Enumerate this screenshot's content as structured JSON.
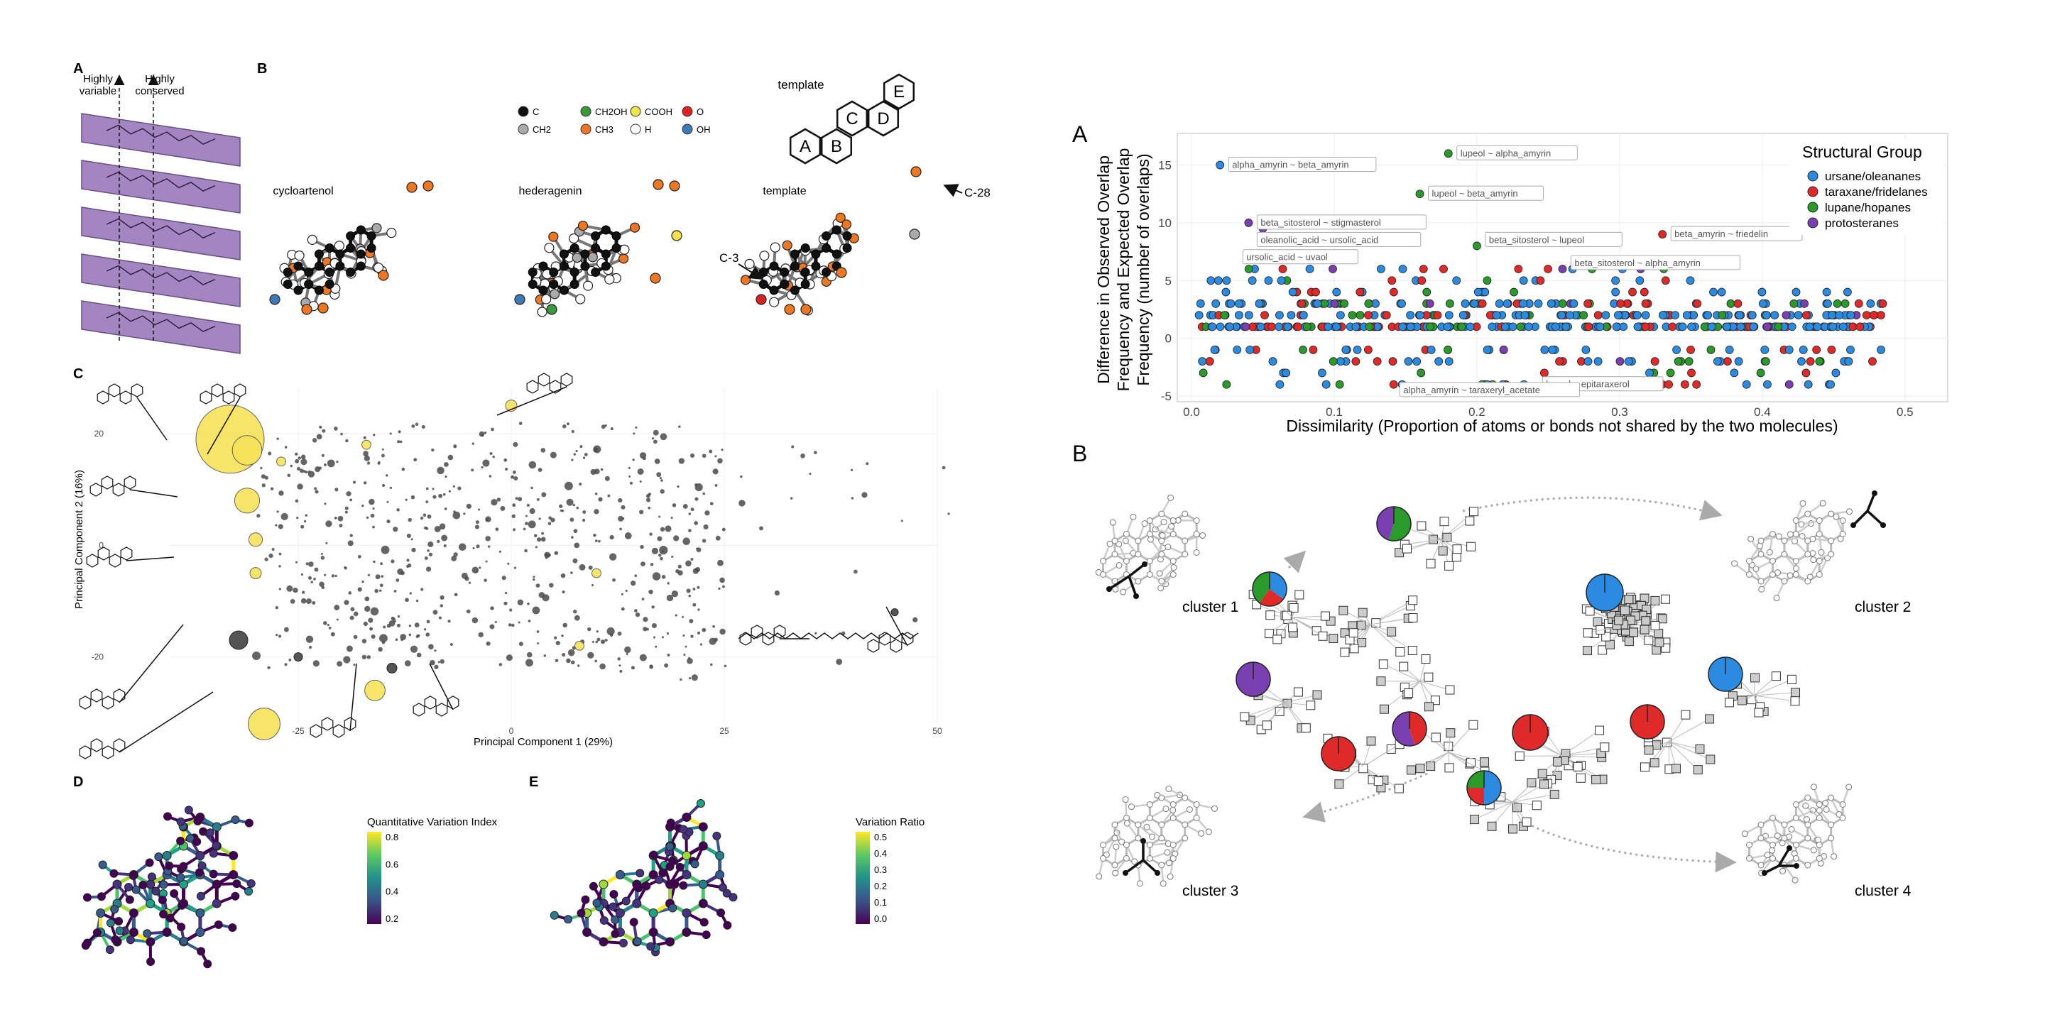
{
  "left_figure": {
    "panel_labels": [
      "A",
      "B",
      "C",
      "D",
      "E"
    ],
    "panel_a": {
      "label_variable": [
        "Highly",
        "variable"
      ],
      "label_conserved": [
        "Highly",
        "conserved"
      ]
    },
    "panel_b": {
      "legend": [
        {
          "name": "C",
          "color": "#111111"
        },
        {
          "name": "CH2",
          "color": "#aaaaaa"
        },
        {
          "name": "CH2OH",
          "color": "#3a9a3a"
        },
        {
          "name": "CH3",
          "color": "#ee7722"
        },
        {
          "name": "COOH",
          "color": "#f2e24a"
        },
        {
          "name": "H",
          "color": "#ffffff"
        },
        {
          "name": "O",
          "color": "#dd2222"
        },
        {
          "name": "OH",
          "color": "#3d7ab8"
        }
      ],
      "template_title": "template",
      "rings": [
        "A",
        "B",
        "C",
        "D",
        "E"
      ],
      "molecules": [
        "cycloartenol",
        "hederagenin",
        "template"
      ],
      "annotations": [
        "C-28",
        "C-3"
      ]
    },
    "panel_c": {
      "chart_data": {
        "type": "scatter",
        "xlabel": "Principal Component 1 (29%)",
        "ylabel": "Principal Component 2 (16%)",
        "x_ticks": [
          "-25",
          "0",
          "25",
          "50"
        ],
        "y_ticks": [
          "20",
          "0",
          "-20"
        ],
        "xlim": [
          -40,
          50
        ],
        "ylim": [
          -32,
          28
        ],
        "highlighted": [
          {
            "x": -33,
            "y": 19,
            "size": 30
          },
          {
            "x": -31,
            "y": 17,
            "size": 13
          },
          {
            "x": -31,
            "y": 8,
            "size": 11
          },
          {
            "x": -30,
            "y": 1,
            "size": 6
          },
          {
            "x": -30,
            "y": -5,
            "size": 5
          },
          {
            "x": -29,
            "y": -32,
            "size": 14
          },
          {
            "x": -16,
            "y": -26,
            "size": 9
          },
          {
            "x": 0,
            "y": 25,
            "size": 5
          },
          {
            "x": 10,
            "y": -5,
            "size": 4
          },
          {
            "x": 8,
            "y": -18,
            "size": 4
          },
          {
            "x": -27,
            "y": 15,
            "size": 4
          },
          {
            "x": -17,
            "y": 18,
            "size": 4
          }
        ],
        "gray_large": [
          {
            "x": -32,
            "y": -17,
            "size": 13
          },
          {
            "x": -25,
            "y": -20,
            "size": 6
          },
          {
            "x": -14,
            "y": -22,
            "size": 7
          },
          {
            "x": 45,
            "y": -12,
            "size": 5
          }
        ]
      }
    },
    "panel_d": {
      "colorbar_title": "Quantitative Variation Index",
      "colorbar_ticks": [
        "0.8",
        "0.6",
        "0.4",
        "0.2"
      ]
    },
    "panel_e": {
      "colorbar_title": "Variation Ratio",
      "colorbar_ticks": [
        "0.5",
        "0.4",
        "0.3",
        "0.2",
        "0.1",
        "0.0"
      ]
    }
  },
  "right_figure": {
    "panel_labels": [
      "A",
      "B"
    ],
    "panel_a": {
      "chart_data": {
        "type": "scatter",
        "xlabel": "Dissimilarity (Proportion of atoms or bonds not shared by the two molecules)",
        "ylabel": "Difference in Observed Overlap Frequency and Expected Overlap Frequency (number of overlaps)",
        "ylabel_lines": [
          "Difference in Observed Overlap",
          "Frequency and Expected Overlap",
          "Frequency (number of overlaps)"
        ],
        "xlim": [
          0,
          0.52
        ],
        "ylim": [
          -5,
          17
        ],
        "x_ticks": [
          "0.0",
          "0.1",
          "0.2",
          "0.3",
          "0.4",
          "0.5"
        ],
        "y_ticks": [
          "15",
          "10",
          "5",
          "0",
          "-5"
        ],
        "legend_title": "Structural Group",
        "series": [
          {
            "name": "ursane/oleananes",
            "color": "#2a8be0"
          },
          {
            "name": "taraxane/fridelanes",
            "color": "#e02a2a"
          },
          {
            "name": "lupane/hopanes",
            "color": "#2a9a2a"
          },
          {
            "name": "protosteranes",
            "color": "#7a3fb0"
          }
        ],
        "annotations": [
          {
            "text": "alpha_amyrin ~ beta_amyrin",
            "x": 0.02,
            "y": 15
          },
          {
            "text": "lupeol ~ alpha_amyrin",
            "x": 0.18,
            "y": 16
          },
          {
            "text": "lupeol ~ beta_amyrin",
            "x": 0.16,
            "y": 12.5
          },
          {
            "text": "beta_sitosterol ~ stigmasterol",
            "x": 0.04,
            "y": 10
          },
          {
            "text": "oleanolic_acid ~ ursolic_acid",
            "x": 0.04,
            "y": 8.5
          },
          {
            "text": "beta_sitosterol ~ lupeol",
            "x": 0.2,
            "y": 8.5
          },
          {
            "text": "beta_amyrin ~ friedelin",
            "x": 0.33,
            "y": 9
          },
          {
            "text": "beta_sitosterol ~ alpha_amyrin",
            "x": 0.26,
            "y": 6.5
          },
          {
            "text": "ursolic_acid ~ uvaol",
            "x": 0.03,
            "y": 7
          },
          {
            "text": "lupeol ~ epitaraxerol",
            "x": 0.24,
            "y": -4
          },
          {
            "text": "alpha_amyrin ~ taraxeryl_acetate",
            "x": 0.14,
            "y": -4.5
          }
        ]
      }
    },
    "panel_b": {
      "clusters": [
        "cluster 1",
        "cluster 2",
        "cluster 3",
        "cluster 4"
      ]
    }
  }
}
